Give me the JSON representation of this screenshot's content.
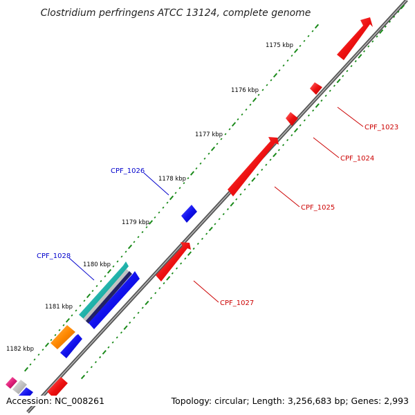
{
  "title": "Clostridium perfringens ATCC 13124, complete genome",
  "accession_text": "Accession: NC_008261",
  "summary_text": "Topology: circular; Length: 3,256,683 bp; Genes: 2,993",
  "colors": {
    "backbone": "#7a7a7a",
    "tick": "#1a8a1a",
    "forward_gene": "#ee1111",
    "reverse_gene": "#1111ee",
    "forward_label": "#cc0000",
    "reverse_label": "#0000cc",
    "teal_feature": "#20b2aa",
    "orange_feature": "#ff8800",
    "pink_feature": "#e0207a"
  },
  "ruler_labels": [
    "1175 kbp",
    "1176 kbp",
    "1177 kbp",
    "1178 kbp",
    "1179 kbp",
    "1180 kbp",
    "1181 kbp",
    "1182 kbp"
  ],
  "gene_labels": {
    "cpf_1023": "CPF_1023",
    "cpf_1024": "CPF_1024",
    "cpf_1025": "CPF_1025",
    "cpf_1026": "CPF_1026",
    "cpf_1027": "CPF_1027",
    "cpf_1028": "CPF_1028"
  }
}
